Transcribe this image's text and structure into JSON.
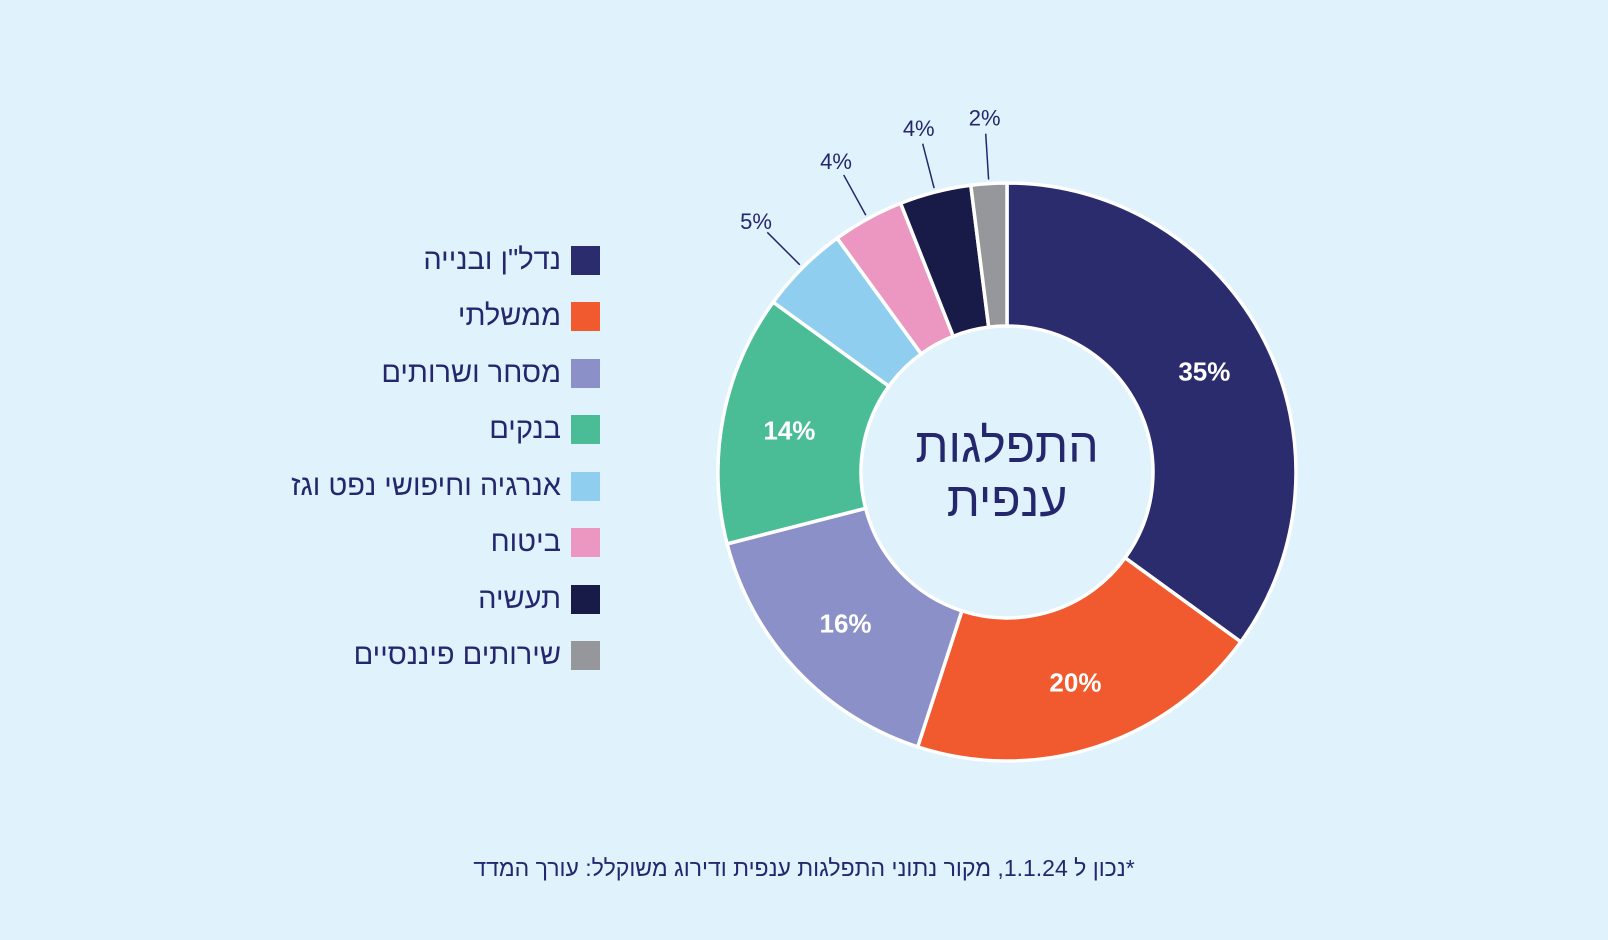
{
  "chart_data": {
    "type": "pie",
    "donut": true,
    "title": "התפלגות ענפית",
    "categories": [
      "נדל\"ן ובנייה",
      "ממשלתי",
      "מסחר ושרותים",
      "בנקים",
      "אנרגיה וחיפושי נפט וגז",
      "ביטוח",
      "תעשיה",
      "שירותים פיננסיים"
    ],
    "values": [
      35,
      20,
      16,
      14,
      5,
      4,
      4,
      2
    ],
    "labels": [
      "35%",
      "20%",
      "16%",
      "14%",
      "5%",
      "4%",
      "4%",
      "2%"
    ],
    "colors": [
      "#2b2c6e",
      "#f15a2e",
      "#8b91c8",
      "#4bbd96",
      "#90cef0",
      "#ec97c1",
      "#181a47",
      "#96979b"
    ],
    "start": "top",
    "direction": "clockwise",
    "legend_placement": "left"
  },
  "title_lines": [
    "התפלגות",
    "ענפית"
  ],
  "footnote": "*נכון ל 1.1.24, מקור נתוני התפלגות ענפית ודירוג משוקלל: עורך המדד",
  "colors": {
    "background": "#e0f2fb",
    "text": "#24276e"
  }
}
